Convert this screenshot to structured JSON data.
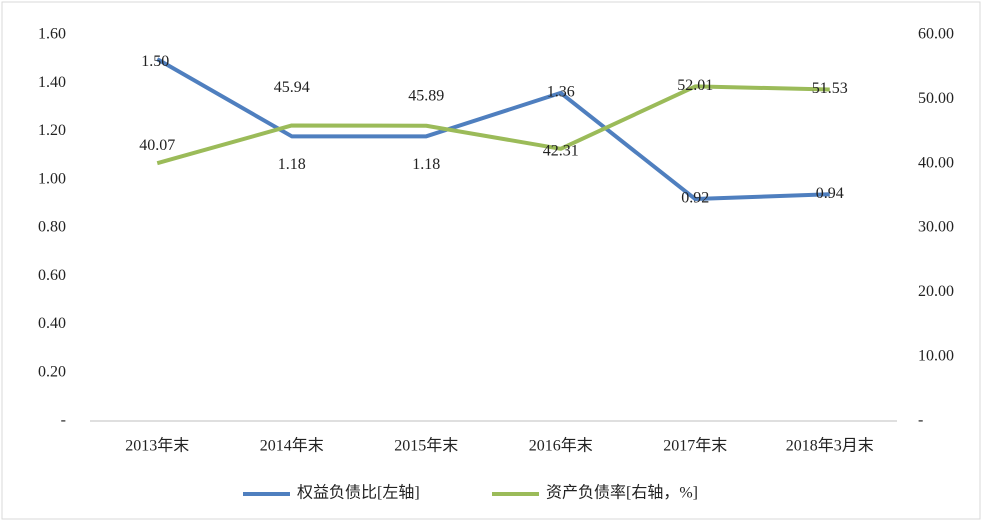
{
  "chart_data": {
    "type": "line",
    "categories": [
      "2013年末",
      "2014年末",
      "2015年末",
      "2016年末",
      "2017年末",
      "2018年3月末"
    ],
    "series": [
      {
        "name": "权益负债比[左轴]",
        "color": "#4f7fbf",
        "values": [
          1.5,
          1.18,
          1.18,
          1.36,
          0.92,
          0.94
        ],
        "value_labels": [
          "1.50",
          "1.18",
          "1.18",
          "1.36",
          "0.92",
          "0.94"
        ]
      },
      {
        "name": "资产负债率[右轴，%]",
        "color": "#9bbb59",
        "axis": "y2",
        "values": [
          40.07,
          45.94,
          45.89,
          42.31,
          52.01,
          51.53
        ]
      }
    ],
    "ylim": [
      0,
      1.6
    ],
    "yticks": [
      {
        "value": 0,
        "label": "-"
      },
      {
        "value": 0.2,
        "label": "0.20"
      },
      {
        "value": 0.4,
        "label": "0.40"
      },
      {
        "value": 0.6,
        "label": "0.60"
      },
      {
        "value": 0.8,
        "label": "0.80"
      },
      {
        "value": 1.0,
        "label": "1.00"
      },
      {
        "value": 1.2,
        "label": "1.20"
      },
      {
        "value": 1.4,
        "label": "1.40"
      },
      {
        "value": 1.6,
        "label": "1.60"
      }
    ],
    "y2lim": [
      0,
      60
    ],
    "y2ticks": [
      {
        "value": 0,
        "label": "-"
      },
      {
        "value": 10,
        "label": "10.00"
      },
      {
        "value": 20,
        "label": "20.00"
      },
      {
        "value": 30,
        "label": "30.00"
      },
      {
        "value": 40,
        "label": "40.00"
      },
      {
        "value": 50,
        "label": "50.00"
      },
      {
        "value": 60,
        "label": "60.00"
      }
    ],
    "legend": "bottom"
  }
}
